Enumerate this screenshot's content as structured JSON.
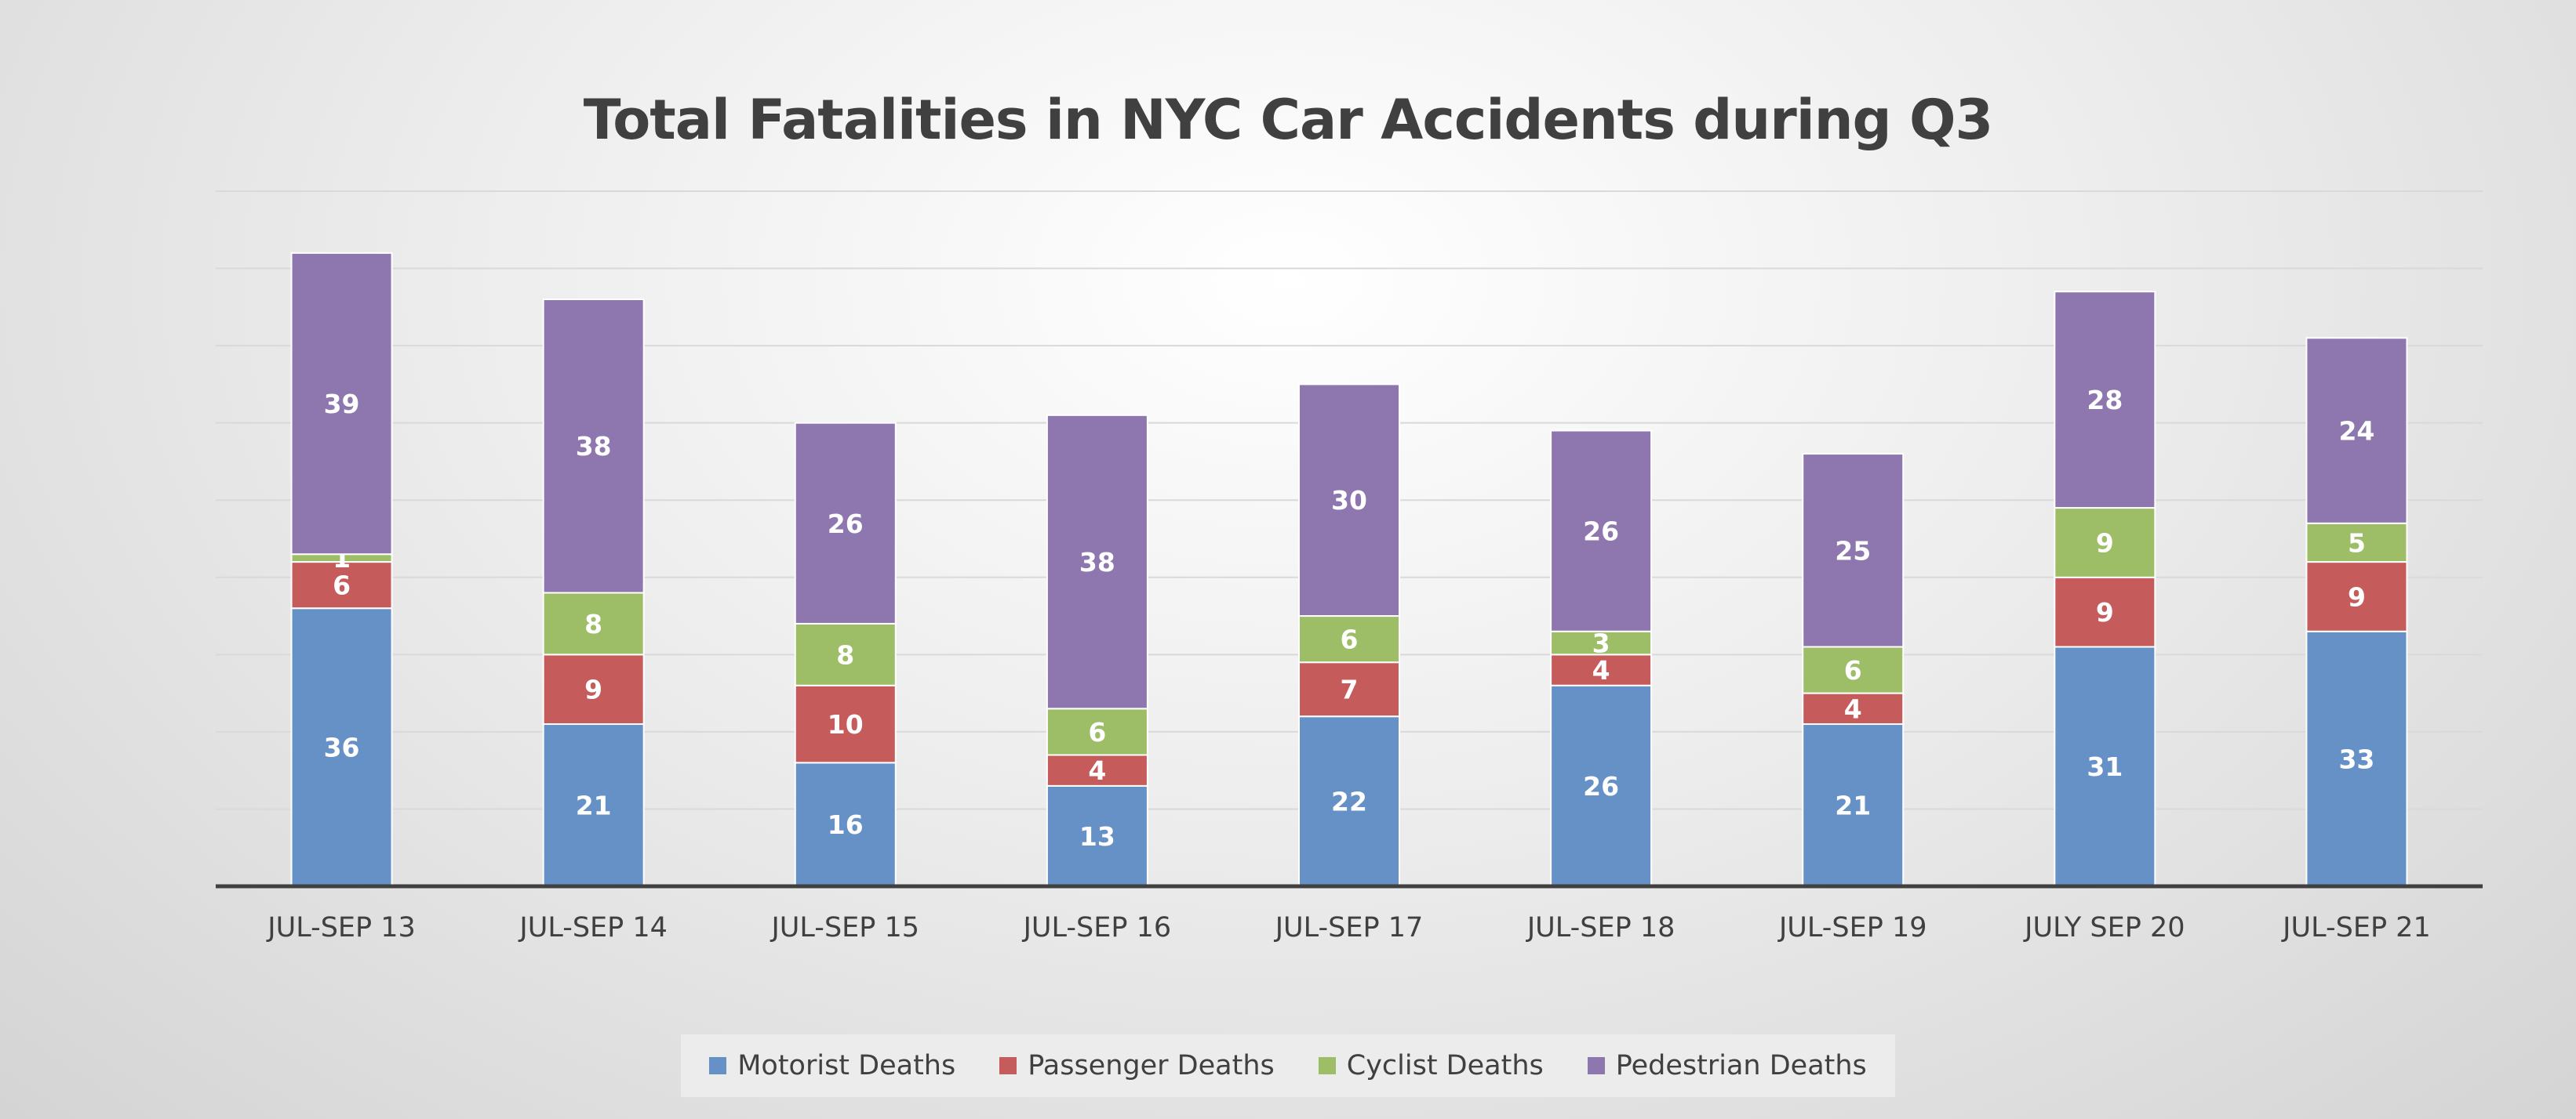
{
  "chart_data": {
    "type": "bar",
    "stacked": true,
    "title": "Total Fatalities in NYC Car Accidents during Q3",
    "categories": [
      "JUL-SEP 13",
      "JUL-SEP 14",
      "JUL-SEP 15",
      "JUL-SEP 16",
      "JUL-SEP 17",
      "JUL-SEP 18",
      "JUL-SEP 19",
      "JULY SEP 20",
      "JUL-SEP 21"
    ],
    "series": [
      {
        "name": "Motorist Deaths",
        "color": "#6591C6",
        "values": [
          36,
          21,
          16,
          13,
          22,
          26,
          21,
          31,
          33
        ]
      },
      {
        "name": "Passenger Deaths",
        "color": "#C65B5B",
        "values": [
          6,
          9,
          10,
          4,
          7,
          4,
          4,
          9,
          9
        ]
      },
      {
        "name": "Cyclist Deaths",
        "color": "#9DBE66",
        "values": [
          1,
          8,
          8,
          6,
          6,
          3,
          6,
          9,
          5
        ]
      },
      {
        "name": "Pedestrian Deaths",
        "color": "#8E76AE",
        "values": [
          39,
          38,
          26,
          38,
          30,
          26,
          25,
          28,
          24
        ]
      }
    ],
    "xlabel": "",
    "ylabel": "",
    "ylim": [
      0,
      90
    ],
    "y_tick_step": 10,
    "y_tick_labels_shown": false,
    "grid": true,
    "legend_position": "bottom"
  }
}
